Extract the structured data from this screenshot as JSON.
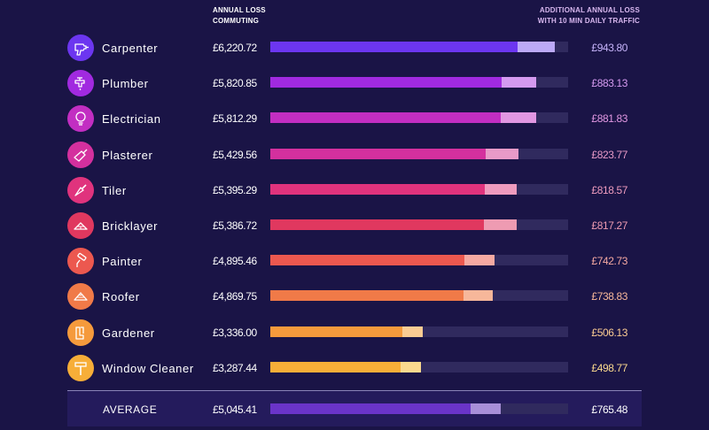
{
  "header": {
    "loss_line1": "ANNUAL LOSS",
    "loss_line2": "COMMUTING",
    "add_line1": "ADDITIONAL ANNUAL LOSS",
    "add_line2": "WITH 10 MIN DAILY TRAFFIC"
  },
  "chart_data": {
    "type": "bar",
    "orientation": "horizontal",
    "stacked": true,
    "xlim": [
      0,
      7500
    ],
    "categories": [
      "Carpenter",
      "Plumber",
      "Electrician",
      "Plasterer",
      "Tiler",
      "Bricklayer",
      "Painter",
      "Roofer",
      "Gardener",
      "Window Cleaner"
    ],
    "annual_loss_labels": [
      "£6,220.72",
      "£5,820.85",
      "£5,812.29",
      "£5,429.56",
      "£5,395.29",
      "£5,386.72",
      "£4,895.46",
      "£4,869.75",
      "£3,336.00",
      "£3,287.44"
    ],
    "additional_loss_labels": [
      "£943.80",
      "£883.13",
      "£881.83",
      "£823.77",
      "£818.57",
      "£817.27",
      "£742.73",
      "£738.83",
      "£506.13",
      "£498.77"
    ],
    "series": [
      {
        "name": "ANNUAL LOSS COMMUTING",
        "values": [
          6220.72,
          5820.85,
          5812.29,
          5429.56,
          5395.29,
          5386.72,
          4895.46,
          4869.75,
          3336.0,
          3287.44
        ]
      },
      {
        "name": "ADDITIONAL ANNUAL LOSS WITH 10 MIN DAILY TRAFFIC",
        "values": [
          943.8,
          883.13,
          881.83,
          823.77,
          818.57,
          817.27,
          742.73,
          738.83,
          506.13,
          498.77
        ]
      }
    ],
    "colors": [
      "#6c36f0",
      "#a12ae0",
      "#c22ec2",
      "#d4309e",
      "#e0337d",
      "#e0385f",
      "#ec584f",
      "#f07a48",
      "#f59a3c",
      "#f7ae38"
    ],
    "light_colors": [
      "#bca9f7",
      "#d59af0",
      "#e197e2",
      "#e89ac8",
      "#ee9bbe",
      "#ee9bb2",
      "#f5a9a2",
      "#f7b79a",
      "#fbcc93",
      "#fbd98e"
    ],
    "label_colors": [
      "#c6b3fa",
      "#d59af0",
      "#e197e2",
      "#e89ac8",
      "#ee9bbe",
      "#ee9bb2",
      "#f5a9a2",
      "#f7b79a",
      "#fbcc93",
      "#fbd98e"
    ],
    "icons": [
      "drill-icon",
      "faucet-icon",
      "lightbulb-icon",
      "trowel-icon",
      "tile-trowel-icon",
      "bricks-icon",
      "paint-roller-icon",
      "roof-icon",
      "boots-icon",
      "squeegee-icon"
    ],
    "average": {
      "label": "AVERAGE",
      "value": 5045.41,
      "value_label": "£5,045.41",
      "extra": 765.48,
      "extra_label": "£765.48",
      "color": "#6a34c8",
      "light_color": "#a88fd8"
    }
  }
}
